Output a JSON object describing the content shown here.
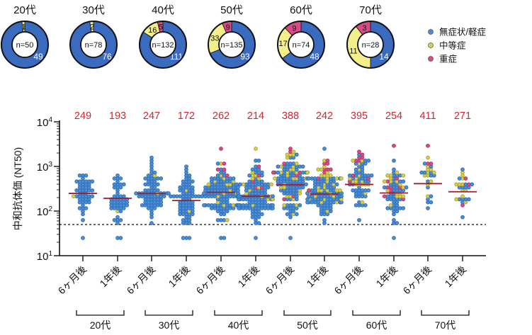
{
  "colors": {
    "mild": "#3a6bbf",
    "mild_point": "#4a8fd6",
    "moderate": "#f3ef8a",
    "moderate_point": "#d9cf4a",
    "severe": "#d94a86",
    "median_line": "#a01c30",
    "median_label": "#d0282e"
  },
  "legend": {
    "placement": "right",
    "items": [
      {
        "label": "無症状/軽症",
        "key": "mild"
      },
      {
        "label": "中等症",
        "key": "moderate"
      },
      {
        "label": "重症",
        "key": "severe"
      }
    ]
  },
  "chart_data": [
    {
      "type": "pie",
      "variant": "donut",
      "charts": [
        {
          "title": "20代",
          "n_label": "n=50",
          "values": {
            "mild": 49,
            "moderate": 1,
            "severe": 0
          }
        },
        {
          "title": "30代",
          "n_label": "n=78",
          "values": {
            "mild": 76,
            "moderate": 2,
            "severe": 0
          }
        },
        {
          "title": "40代",
          "n_label": "n=132",
          "values": {
            "mild": 111,
            "moderate": 16,
            "severe": 5
          }
        },
        {
          "title": "50代",
          "n_label": "n=135",
          "values": {
            "mild": 93,
            "moderate": 33,
            "severe": 9
          }
        },
        {
          "title": "60代",
          "n_label": "n=74",
          "values": {
            "mild": 48,
            "moderate": 17,
            "severe": 9
          }
        },
        {
          "title": "70代",
          "n_label": "n=28",
          "values": {
            "mild": 14,
            "moderate": 11,
            "severe": 3
          }
        }
      ]
    },
    {
      "type": "scatter",
      "variant": "swarm",
      "ylabel": "中和抗体価 (NT50)",
      "yscale": "log",
      "ylim": [
        10,
        10000
      ],
      "yticks": [
        {
          "base": "10",
          "exp": "1",
          "value": 10
        },
        {
          "base": "10",
          "exp": "2",
          "value": 100
        },
        {
          "base": "10",
          "exp": "3",
          "value": 1000
        },
        {
          "base": "10",
          "exp": "4",
          "value": 10000
        }
      ],
      "detection_limit": 50,
      "categories": [
        {
          "label": "6ヶ月後",
          "group": "20代",
          "median": 249
        },
        {
          "label": "1年後",
          "group": "20代",
          "median": 193
        },
        {
          "label": "6ヶ月後",
          "group": "30代",
          "median": 247
        },
        {
          "label": "1年後",
          "group": "30代",
          "median": 172
        },
        {
          "label": "6ヶ月後",
          "group": "40代",
          "median": 262
        },
        {
          "label": "1年後",
          "group": "40代",
          "median": 214
        },
        {
          "label": "6ヶ月後",
          "group": "50代",
          "median": 388
        },
        {
          "label": "1年後",
          "group": "50代",
          "median": 242
        },
        {
          "label": "6ヶ月後",
          "group": "60代",
          "median": 395
        },
        {
          "label": "1年後",
          "group": "60代",
          "median": 254
        },
        {
          "label": "6ヶ月後",
          "group": "70代",
          "median": 411
        },
        {
          "label": "1年後",
          "group": "70代",
          "median": 271
        }
      ],
      "groups": [
        "20代",
        "30代",
        "40代",
        "50代",
        "60代",
        "70代"
      ]
    }
  ]
}
